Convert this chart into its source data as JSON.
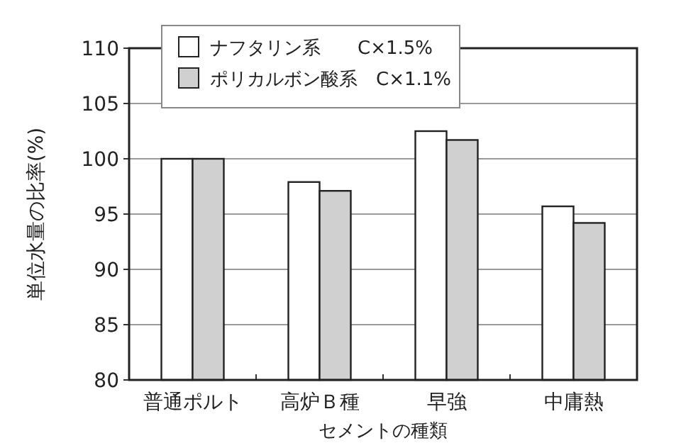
{
  "chart_data": {
    "type": "bar",
    "xlabel": "セメントの種類",
    "ylabel": "単位水量の比率(%)",
    "categories": [
      "普通ポルト",
      "高炉Ｂ種",
      "早強",
      "中庸熱"
    ],
    "series": [
      {
        "name": "ナフタリン系　　C×1.5%",
        "color": "#ffffff",
        "values": [
          100,
          97.9,
          102.5,
          95.7
        ]
      },
      {
        "name": "ポリカルボン酸系　C×1.1%",
        "color": "#d0d0d0",
        "values": [
          100,
          97.1,
          101.7,
          94.2
        ]
      }
    ],
    "ylim": [
      80,
      110
    ],
    "yticks": [
      80,
      85,
      90,
      95,
      100,
      105,
      110
    ],
    "grid": "y",
    "legend": "top left"
  }
}
